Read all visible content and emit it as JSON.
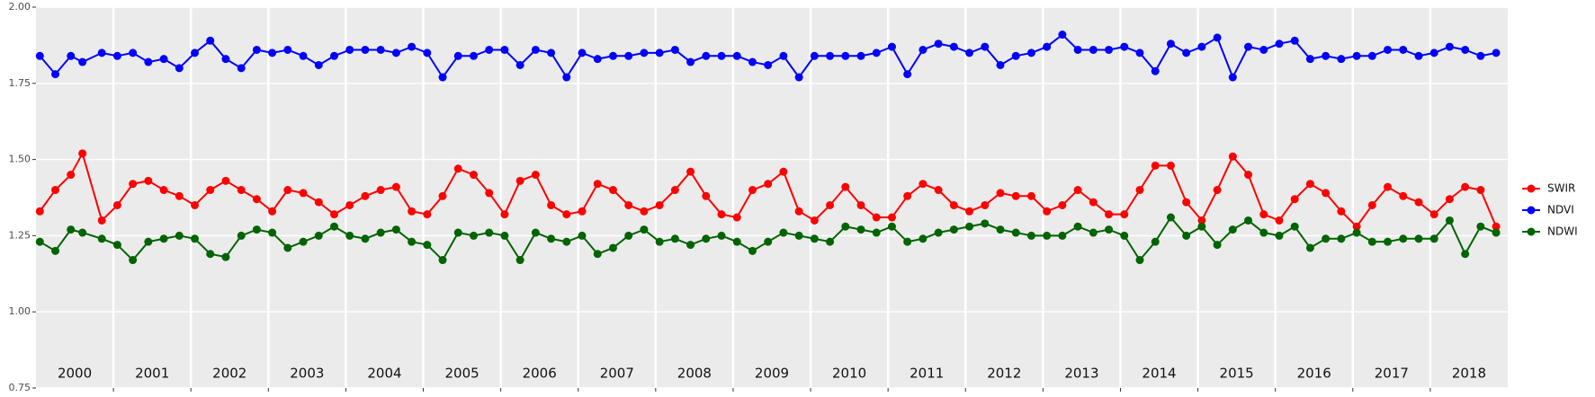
{
  "chart_data": {
    "type": "line",
    "x": [
      2000.05,
      2000.25,
      2000.45,
      2000.6,
      2000.85,
      2001.05,
      2001.25,
      2001.45,
      2001.65,
      2001.85,
      2002.05,
      2002.25,
      2002.45,
      2002.65,
      2002.85,
      2003.05,
      2003.25,
      2003.45,
      2003.65,
      2003.85,
      2004.05,
      2004.25,
      2004.45,
      2004.65,
      2004.85,
      2005.05,
      2005.25,
      2005.45,
      2005.65,
      2005.85,
      2006.05,
      2006.25,
      2006.45,
      2006.65,
      2006.85,
      2007.05,
      2007.25,
      2007.45,
      2007.65,
      2007.85,
      2008.05,
      2008.25,
      2008.45,
      2008.65,
      2008.85,
      2009.05,
      2009.25,
      2009.45,
      2009.65,
      2009.85,
      2010.05,
      2010.25,
      2010.45,
      2010.65,
      2010.85,
      2011.05,
      2011.25,
      2011.45,
      2011.65,
      2011.85,
      2012.05,
      2012.25,
      2012.45,
      2012.65,
      2012.85,
      2013.05,
      2013.25,
      2013.45,
      2013.65,
      2013.85,
      2014.05,
      2014.25,
      2014.45,
      2014.65,
      2014.85,
      2015.05,
      2015.25,
      2015.45,
      2015.65,
      2015.85,
      2016.05,
      2016.25,
      2016.45,
      2016.65,
      2016.85,
      2017.05,
      2017.25,
      2017.45,
      2017.65,
      2017.85,
      2018.05,
      2018.25,
      2018.45,
      2018.65,
      2018.85
    ],
    "series": [
      {
        "name": "SWIR",
        "color": "#ff0000",
        "values": [
          1.33,
          1.4,
          1.45,
          1.52,
          1.3,
          1.35,
          1.42,
          1.43,
          1.4,
          1.38,
          1.35,
          1.4,
          1.43,
          1.4,
          1.37,
          1.33,
          1.4,
          1.39,
          1.36,
          1.32,
          1.35,
          1.38,
          1.4,
          1.41,
          1.33,
          1.32,
          1.38,
          1.47,
          1.45,
          1.39,
          1.32,
          1.43,
          1.45,
          1.35,
          1.32,
          1.33,
          1.42,
          1.4,
          1.35,
          1.33,
          1.35,
          1.4,
          1.46,
          1.38,
          1.32,
          1.31,
          1.4,
          1.42,
          1.46,
          1.33,
          1.3,
          1.35,
          1.41,
          1.35,
          1.31,
          1.31,
          1.38,
          1.42,
          1.4,
          1.35,
          1.33,
          1.35,
          1.39,
          1.38,
          1.38,
          1.33,
          1.35,
          1.4,
          1.36,
          1.32,
          1.32,
          1.4,
          1.48,
          1.48,
          1.36,
          1.3,
          1.4,
          1.51,
          1.45,
          1.32,
          1.3,
          1.37,
          1.42,
          1.39,
          1.33,
          1.28,
          1.35,
          1.41,
          1.38,
          1.36,
          1.32,
          1.37,
          1.41,
          1.4,
          1.28
        ]
      },
      {
        "name": "NDVI",
        "color": "#0000ff",
        "values": [
          1.84,
          1.78,
          1.84,
          1.82,
          1.85,
          1.84,
          1.85,
          1.82,
          1.83,
          1.8,
          1.85,
          1.89,
          1.83,
          1.8,
          1.86,
          1.85,
          1.86,
          1.84,
          1.81,
          1.84,
          1.86,
          1.86,
          1.86,
          1.85,
          1.87,
          1.85,
          1.77,
          1.84,
          1.84,
          1.86,
          1.86,
          1.81,
          1.86,
          1.85,
          1.77,
          1.85,
          1.83,
          1.84,
          1.84,
          1.85,
          1.85,
          1.86,
          1.82,
          1.84,
          1.84,
          1.84,
          1.82,
          1.81,
          1.84,
          1.77,
          1.84,
          1.84,
          1.84,
          1.84,
          1.85,
          1.87,
          1.78,
          1.86,
          1.88,
          1.87,
          1.85,
          1.87,
          1.81,
          1.84,
          1.85,
          1.87,
          1.91,
          1.86,
          1.86,
          1.86,
          1.87,
          1.85,
          1.79,
          1.88,
          1.85,
          1.87,
          1.9,
          1.77,
          1.87,
          1.86,
          1.88,
          1.89,
          1.83,
          1.84,
          1.83,
          1.84,
          1.84,
          1.86,
          1.86,
          1.84,
          1.85,
          1.87,
          1.86,
          1.84,
          1.85
        ]
      },
      {
        "name": "NDWI",
        "color": "#006400",
        "values": [
          1.23,
          1.2,
          1.27,
          1.26,
          1.24,
          1.22,
          1.17,
          1.23,
          1.24,
          1.25,
          1.24,
          1.19,
          1.18,
          1.25,
          1.27,
          1.26,
          1.21,
          1.23,
          1.25,
          1.28,
          1.25,
          1.24,
          1.26,
          1.27,
          1.23,
          1.22,
          1.17,
          1.26,
          1.25,
          1.26,
          1.25,
          1.17,
          1.26,
          1.24,
          1.23,
          1.25,
          1.19,
          1.21,
          1.25,
          1.27,
          1.23,
          1.24,
          1.22,
          1.24,
          1.25,
          1.23,
          1.2,
          1.23,
          1.26,
          1.25,
          1.24,
          1.23,
          1.28,
          1.27,
          1.26,
          1.28,
          1.23,
          1.24,
          1.26,
          1.27,
          1.28,
          1.29,
          1.27,
          1.26,
          1.25,
          1.25,
          1.25,
          1.28,
          1.26,
          1.27,
          1.25,
          1.17,
          1.23,
          1.31,
          1.25,
          1.28,
          1.22,
          1.27,
          1.3,
          1.26,
          1.25,
          1.28,
          1.21,
          1.24,
          1.24,
          1.26,
          1.23,
          1.23,
          1.24,
          1.24,
          1.24,
          1.3,
          1.19,
          1.28,
          1.26
        ]
      }
    ],
    "xlim": [
      2000,
      2019
    ],
    "xticks": [
      2001,
      2002,
      2003,
      2004,
      2005,
      2006,
      2007,
      2008,
      2009,
      2010,
      2011,
      2012,
      2013,
      2014,
      2015,
      2016,
      2017,
      2018
    ],
    "year_labels": [
      {
        "value": 2000.5,
        "label": "2000"
      },
      {
        "value": 2001.5,
        "label": "2001"
      },
      {
        "value": 2002.5,
        "label": "2002"
      },
      {
        "value": 2003.5,
        "label": "2003"
      },
      {
        "value": 2004.5,
        "label": "2004"
      },
      {
        "value": 2005.5,
        "label": "2005"
      },
      {
        "value": 2006.5,
        "label": "2006"
      },
      {
        "value": 2007.5,
        "label": "2007"
      },
      {
        "value": 2008.5,
        "label": "2008"
      },
      {
        "value": 2009.5,
        "label": "2009"
      },
      {
        "value": 2010.5,
        "label": "2010"
      },
      {
        "value": 2011.5,
        "label": "2011"
      },
      {
        "value": 2012.5,
        "label": "2012"
      },
      {
        "value": 2013.5,
        "label": "2013"
      },
      {
        "value": 2014.5,
        "label": "2014"
      },
      {
        "value": 2015.5,
        "label": "2015"
      },
      {
        "value": 2016.5,
        "label": "2016"
      },
      {
        "value": 2017.5,
        "label": "2017"
      },
      {
        "value": 2018.5,
        "label": "2018"
      }
    ],
    "ylim": [
      0.75,
      2.0
    ],
    "yticks": [
      {
        "value": 0.75,
        "label": "0.75"
      },
      {
        "value": 1.0,
        "label": "1.00"
      },
      {
        "value": 1.25,
        "label": "1.25"
      },
      {
        "value": 1.5,
        "label": "1.50"
      },
      {
        "value": 1.75,
        "label": "1.75"
      },
      {
        "value": 2.0,
        "label": "2.00"
      }
    ],
    "grid": true,
    "legend": "right"
  }
}
